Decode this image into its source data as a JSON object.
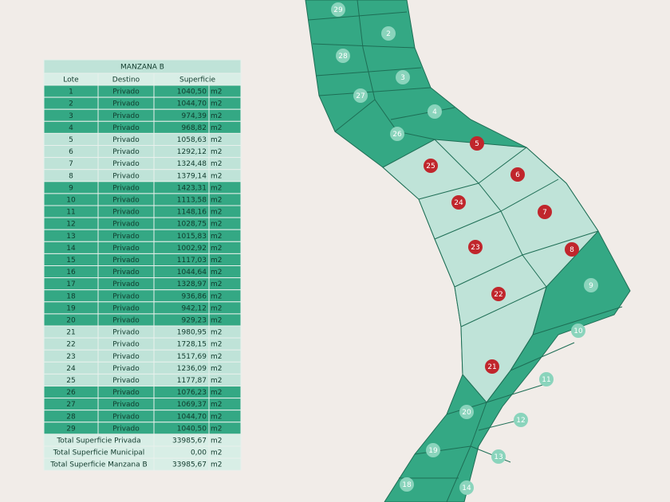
{
  "table": {
    "title": "MANZANA B",
    "headers": [
      "Lote",
      "Destino",
      "Superficie"
    ],
    "rows": [
      {
        "cells": [
          "1",
          "Privado",
          "1040,50",
          "m2"
        ],
        "color": "#34a884"
      },
      {
        "cells": [
          "2",
          "Privado",
          "1044,70",
          "m2"
        ],
        "color": "#34a884"
      },
      {
        "cells": [
          "3",
          "Privado",
          "974,39",
          "m2"
        ],
        "color": "#34a884"
      },
      {
        "cells": [
          "4",
          "Privado",
          "968,82",
          "m2"
        ],
        "color": "#34a884"
      },
      {
        "cells": [
          "5",
          "Privado",
          "1058,63",
          "m2"
        ],
        "color": "#bfe3d8"
      },
      {
        "cells": [
          "6",
          "Privado",
          "1292,12",
          "m2"
        ],
        "color": "#bfe3d8"
      },
      {
        "cells": [
          "7",
          "Privado",
          "1324,48",
          "m2"
        ],
        "color": "#bfe3d8"
      },
      {
        "cells": [
          "8",
          "Privado",
          "1379,14",
          "m2"
        ],
        "color": "#bfe3d8"
      },
      {
        "cells": [
          "9",
          "Privado",
          "1423,31",
          "m2"
        ],
        "color": "#34a884"
      },
      {
        "cells": [
          "10",
          "Privado",
          "1113,58",
          "m2"
        ],
        "color": "#34a884"
      },
      {
        "cells": [
          "11",
          "Privado",
          "1148,16",
          "m2"
        ],
        "color": "#34a884"
      },
      {
        "cells": [
          "12",
          "Privado",
          "1028,75",
          "m2"
        ],
        "color": "#34a884"
      },
      {
        "cells": [
          "13",
          "Privado",
          "1015,83",
          "m2"
        ],
        "color": "#34a884"
      },
      {
        "cells": [
          "14",
          "Privado",
          "1002,92",
          "m2"
        ],
        "color": "#34a884"
      },
      {
        "cells": [
          "15",
          "Privado",
          "1117,03",
          "m2"
        ],
        "color": "#34a884"
      },
      {
        "cells": [
          "16",
          "Privado",
          "1044,64",
          "m2"
        ],
        "color": "#34a884"
      },
      {
        "cells": [
          "17",
          "Privado",
          "1328,97",
          "m2"
        ],
        "color": "#34a884"
      },
      {
        "cells": [
          "18",
          "Privado",
          "936,86",
          "m2"
        ],
        "color": "#34a884"
      },
      {
        "cells": [
          "19",
          "Privado",
          "942,12",
          "m2"
        ],
        "color": "#34a884"
      },
      {
        "cells": [
          "20",
          "Privado",
          "929,23",
          "m2"
        ],
        "color": "#34a884"
      },
      {
        "cells": [
          "21",
          "Privado",
          "1980,95",
          "m2"
        ],
        "color": "#bfe3d8"
      },
      {
        "cells": [
          "22",
          "Privado",
          "1728,15",
          "m2"
        ],
        "color": "#bfe3d8"
      },
      {
        "cells": [
          "23",
          "Privado",
          "1517,69",
          "m2"
        ],
        "color": "#bfe3d8"
      },
      {
        "cells": [
          "24",
          "Privado",
          "1236,09",
          "m2"
        ],
        "color": "#bfe3d8"
      },
      {
        "cells": [
          "25",
          "Privado",
          "1177,87",
          "m2"
        ],
        "color": "#bfe3d8"
      },
      {
        "cells": [
          "26",
          "Privado",
          "1076,23",
          "m2"
        ],
        "color": "#34a884"
      },
      {
        "cells": [
          "27",
          "Privado",
          "1069,37",
          "m2"
        ],
        "color": "#34a884"
      },
      {
        "cells": [
          "28",
          "Privado",
          "1044,70",
          "m2"
        ],
        "color": "#34a884"
      },
      {
        "cells": [
          "29",
          "Privado",
          "1040,50",
          "m2"
        ],
        "color": "#34a884"
      }
    ],
    "totals": [
      [
        "Total Superficie Privada",
        "33985,67",
        "m2"
      ],
      [
        "Total Superficie Municipal",
        "0,00",
        "m2"
      ],
      [
        "Total Superficie Manzana B",
        "33985,67",
        "m2"
      ]
    ]
  },
  "map": {
    "lots": [
      {
        "label": "29",
        "marker": "#8ad4bc"
      },
      {
        "label": "2",
        "marker": "#8ad4bc"
      },
      {
        "label": "28",
        "marker": "#8ad4bc"
      },
      {
        "label": "3",
        "marker": "#8ad4bc"
      },
      {
        "label": "27",
        "marker": "#8ad4bc"
      },
      {
        "label": "4",
        "marker": "#8ad4bc"
      },
      {
        "label": "26",
        "marker": "#8ad4bc"
      },
      {
        "label": "5",
        "marker": "#c0262c"
      },
      {
        "label": "25",
        "marker": "#c0262c"
      },
      {
        "label": "6",
        "marker": "#c0262c"
      },
      {
        "label": "24",
        "marker": "#c0262c"
      },
      {
        "label": "7",
        "marker": "#c0262c"
      },
      {
        "label": "23",
        "marker": "#c0262c"
      },
      {
        "label": "8",
        "marker": "#c0262c"
      },
      {
        "label": "22",
        "marker": "#c0262c"
      },
      {
        "label": "9",
        "marker": "#8ad4bc"
      },
      {
        "label": "10",
        "marker": "#8ad4bc"
      },
      {
        "label": "21",
        "marker": "#c0262c"
      },
      {
        "label": "11",
        "marker": "#8ad4bc"
      },
      {
        "label": "20",
        "marker": "#8ad4bc"
      },
      {
        "label": "12",
        "marker": "#8ad4bc"
      },
      {
        "label": "19",
        "marker": "#8ad4bc"
      },
      {
        "label": "13",
        "marker": "#8ad4bc"
      },
      {
        "label": "18",
        "marker": "#8ad4bc"
      },
      {
        "label": "14",
        "marker": "#8ad4bc"
      }
    ]
  }
}
